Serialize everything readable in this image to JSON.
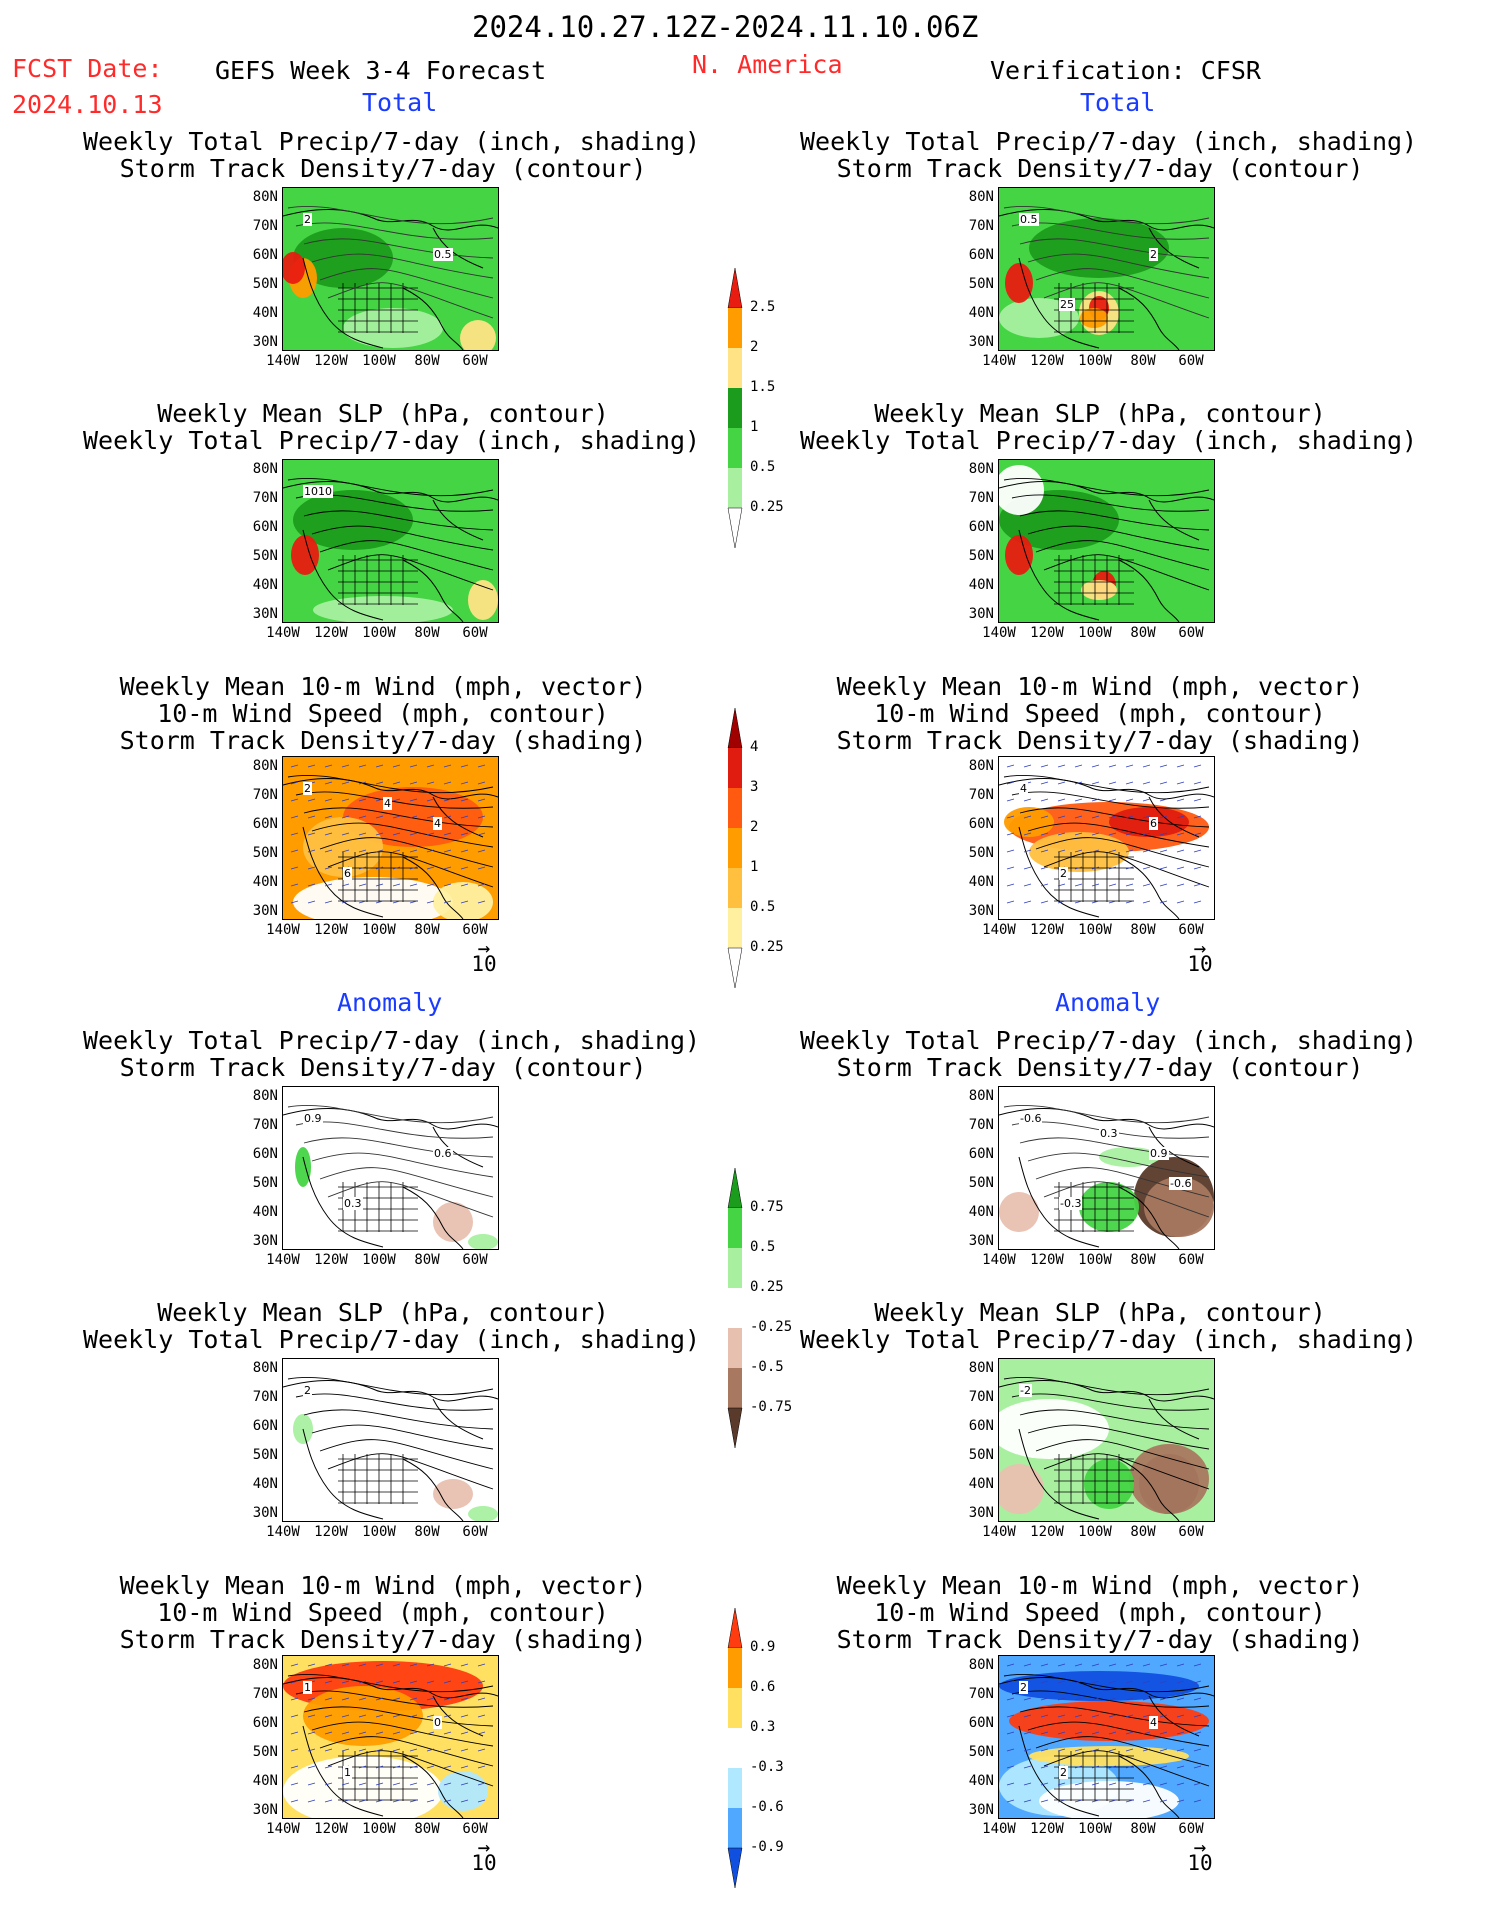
{
  "header": {
    "date_range": "2024.10.27.12Z-2024.11.10.06Z",
    "fcst_label": "FCST Date:",
    "fcst_date": "2024.10.13",
    "forecast": "GEFS Week 3-4 Forecast",
    "region": "N. America",
    "verification": "Verification: CFSR"
  },
  "sections": {
    "total": "Total",
    "anomaly": "Anomaly"
  },
  "titles": {
    "precip": [
      "Weekly Total Precip/7-day (inch, shading)",
      "Storm Track Density/7-day (contour)"
    ],
    "slp": [
      "Weekly Mean SLP (hPa, contour)",
      "Weekly Total Precip/7-day (inch, shading)"
    ],
    "wind": [
      "Weekly Mean 10-m Wind (mph, vector)",
      "10-m Wind Speed (mph, contour)",
      "Storm Track Density/7-day (shading)"
    ]
  },
  "axes": {
    "lat": [
      "80N",
      "70N",
      "60N",
      "50N",
      "40N",
      "30N"
    ],
    "lon": [
      "140W",
      "120W",
      "100W",
      "80W",
      "60W"
    ]
  },
  "vector_ref": "10",
  "contour_labels": {
    "f_precip_total": [
      "2",
      "0.5"
    ],
    "v_precip_total": [
      "0.5",
      "2",
      "25"
    ],
    "f_slp_total": [
      "1010"
    ],
    "f_wind_total": [
      "2",
      "4",
      "6",
      "4"
    ],
    "v_wind_total": [
      "4",
      "6",
      "2"
    ],
    "f_precip_anom": [
      "0.9",
      "0.6",
      "0.3"
    ],
    "v_precip_anom": [
      "-0.6",
      "0.9",
      "-0.3",
      "0.3",
      "-0.6"
    ],
    "f_slp_anom": [
      "2"
    ],
    "v_slp_anom": [
      "-2"
    ],
    "f_wind_anom": [
      "1",
      "0",
      "1"
    ],
    "v_wind_anom": [
      "2",
      "4",
      "2"
    ]
  },
  "colorbars": {
    "precip_total": {
      "labels": [
        "2.5",
        "2",
        "1.5",
        "1",
        "0.5",
        "0.25"
      ],
      "colors": [
        "#e81c10",
        "#ff9c00",
        "#ffe384",
        "#1c9c1c",
        "#44d444",
        "#a8f0a0",
        "#ffffff"
      ]
    },
    "storm_total": {
      "labels": [
        "4",
        "3",
        "2",
        "1",
        "0.5",
        "0.25"
      ],
      "colors": [
        "#a00000",
        "#e01c10",
        "#ff5a10",
        "#ff9c00",
        "#ffc040",
        "#fff0a0",
        "#ffffff"
      ]
    },
    "precip_anom": {
      "labels": [
        "0.75",
        "0.5",
        "0.25",
        "-0.25",
        "-0.5",
        "-0.75"
      ],
      "colors": [
        "#1c9c1c",
        "#44d444",
        "#a8f0a0",
        "#ffffff",
        "#e8c0b0",
        "#a87860",
        "#5a3a2a"
      ]
    },
    "storm_anom": {
      "labels": [
        "0.9",
        "0.6",
        "0.3",
        "-0.3",
        "-0.6",
        "-0.9"
      ],
      "colors": [
        "#ff3c10",
        "#ff9c00",
        "#ffe060",
        "#ffffff",
        "#b0e8ff",
        "#50a8ff",
        "#1050e0"
      ]
    }
  }
}
